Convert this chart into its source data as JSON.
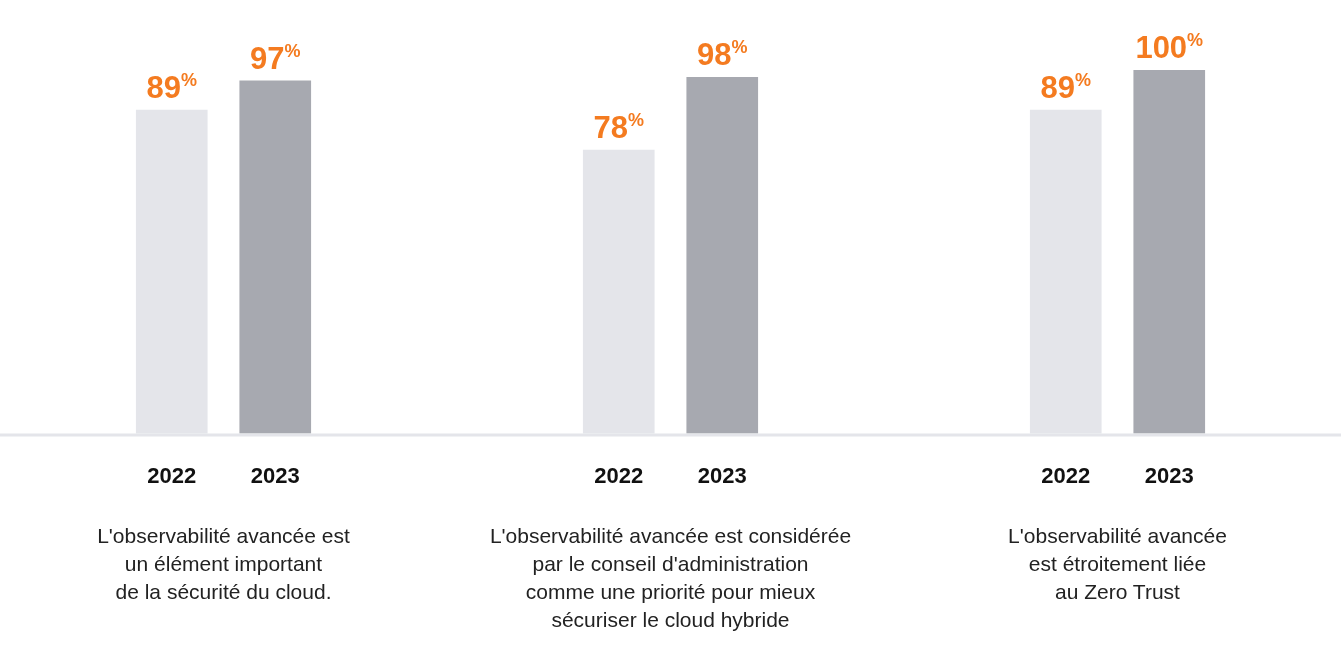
{
  "chart_data": [
    {
      "type": "bar",
      "categories": [
        "2022",
        "2023"
      ],
      "values": [
        89,
        97
      ],
      "colors": [
        "#e4e5ea",
        "#a7a9b0"
      ],
      "value_labels": [
        "89$^{%}$",
        "97$^{%}$"
      ],
      "xlabel": "L'observabilité avancée est\nun élément important\nde la sécurité du cloud.",
      "tick_labels": "x",
      "grid": false,
      "legend": false
    },
    {
      "type": "bar",
      "categories": [
        "2022",
        "2023"
      ],
      "values": [
        78,
        98
      ],
      "colors": [
        "#e4e5ea",
        "#a7a9b0"
      ],
      "value_labels": [
        "78$^{%}$",
        "98$^{%}$"
      ],
      "xlabel": "L'observabilité avancée est considérée\npar le conseil d'administration\ncomme une priorité pour mieux\nsécuriser le cloud hybride",
      "tick_labels": "x",
      "grid": false,
      "legend": false
    },
    {
      "type": "bar",
      "categories": [
        "2022",
        "2023"
      ],
      "values": [
        89,
        100
      ],
      "colors": [
        "#e4e5ea",
        "#a7a9b0"
      ],
      "value_labels": [
        "89$^{%}$",
        "100$^{%}$"
      ],
      "xlabel": "L'observabilité avancée\nest étroitement liée\nau Zero Trust",
      "tick_labels": "x",
      "grid": false,
      "legend": false
    }
  ]
}
